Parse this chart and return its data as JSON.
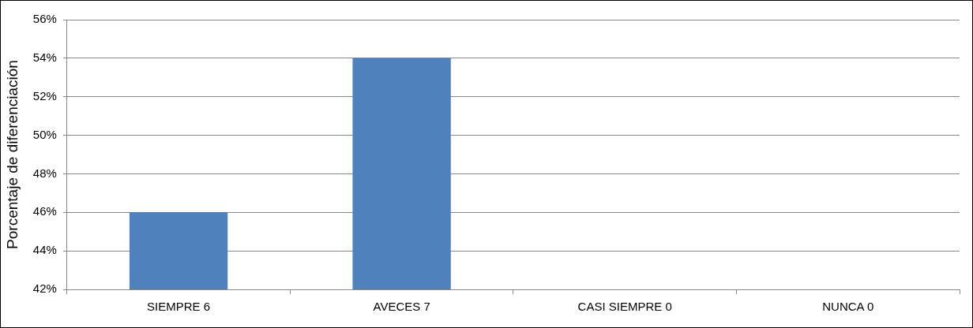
{
  "chart_data": {
    "type": "bar",
    "ylabel": "Porcentaje de diferenciación",
    "categories": [
      "SIEMPRE 6",
      "AVECES 7",
      "CASI SIEMPRE 0",
      "NUNCA 0"
    ],
    "values": [
      46,
      54,
      null,
      null
    ],
    "color": "#4f81bd",
    "ylim": [
      42,
      56
    ],
    "yticks": [
      {
        "value": 42,
        "label": "42%"
      },
      {
        "value": 44,
        "label": "44%"
      },
      {
        "value": 46,
        "label": "46%"
      },
      {
        "value": 48,
        "label": "48%"
      },
      {
        "value": 50,
        "label": "50%"
      },
      {
        "value": 52,
        "label": "52%"
      },
      {
        "value": 54,
        "label": "54%"
      },
      {
        "value": 56,
        "label": "56%"
      }
    ],
    "grid": "y",
    "legend": false
  }
}
